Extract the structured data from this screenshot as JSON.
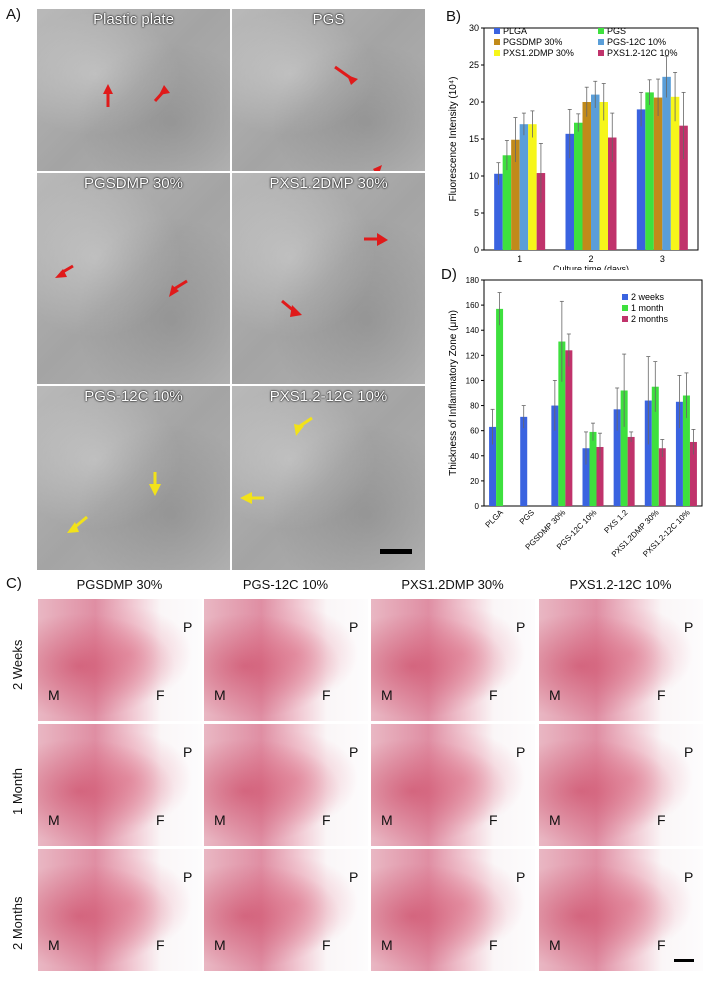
{
  "panels": {
    "a": "A)",
    "b": "B)",
    "c": "C)",
    "d": "D)"
  },
  "panelA": {
    "labels": [
      "Plastic plate",
      "PGS",
      "PGSDMP 30%",
      "PXS1.2DMP 30%",
      "PGS-12C 10%",
      "PXS1.2-12C 10%"
    ]
  },
  "panelC": {
    "columns": [
      "PGSDMP 30%",
      "PGS-12C 10%",
      "PXS1.2DMP 30%",
      "PXS1.2-12C 10%"
    ],
    "rows": [
      "2 Weeks",
      "1 Month",
      "2 Months"
    ],
    "region_labels": {
      "m": "M",
      "f": "F",
      "p": "P"
    }
  },
  "chart_data": [
    {
      "id": "B",
      "type": "bar",
      "xlabel": "Culture time (days)",
      "ylabel": "Fluorescence Intensity (10⁴)",
      "categories": [
        "1",
        "2",
        "3"
      ],
      "ylim": [
        0,
        30
      ],
      "yticks": [
        0,
        5,
        10,
        15,
        20,
        25,
        30
      ],
      "legend": "top",
      "series": [
        {
          "name": "PLGA",
          "color": "#3a63e0",
          "values": [
            10.3,
            15.7,
            19.0
          ],
          "errors": [
            1.5,
            3.3,
            2.3
          ]
        },
        {
          "name": "PGS",
          "color": "#3ee03e",
          "values": [
            12.8,
            17.2,
            21.3
          ],
          "errors": [
            2.0,
            1.2,
            1.7
          ]
        },
        {
          "name": "PGSDMP 30%",
          "color": "#c18a1a",
          "values": [
            14.9,
            20.0,
            20.6
          ],
          "errors": [
            3.0,
            2.0,
            2.5
          ]
        },
        {
          "name": "PGS-12C 10%",
          "color": "#5a9ed8",
          "values": [
            17.0,
            21.0,
            23.4
          ],
          "errors": [
            1.5,
            1.8,
            2.8
          ]
        },
        {
          "name": "PXS1.2DMP 30%",
          "color": "#f6f61a",
          "values": [
            17.0,
            20.0,
            20.7
          ],
          "errors": [
            1.8,
            2.5,
            3.3
          ]
        },
        {
          "name": "PXS1.2-12C 10%",
          "color": "#c0336b",
          "values": [
            10.4,
            15.2,
            16.8
          ],
          "errors": [
            4.0,
            3.3,
            4.5
          ]
        }
      ]
    },
    {
      "id": "D",
      "type": "bar",
      "ylabel": "Thickness of Inflammatory Zone (μm)",
      "categories": [
        "PLGA",
        "PGS",
        "PGSDMP 30%",
        "PGS-12C 10%",
        "PXS 1.2",
        "PXS1.2DMP 30%",
        "PXS1.2-12C 10%"
      ],
      "ylim": [
        0,
        180
      ],
      "yticks": [
        0,
        20,
        40,
        60,
        80,
        100,
        120,
        140,
        160,
        180
      ],
      "legend": "top-right",
      "series": [
        {
          "name": "2 weeks",
          "color": "#3a63e0",
          "values": [
            63,
            71,
            80,
            46,
            77,
            84,
            83
          ],
          "errors": [
            14,
            9,
            20,
            13,
            17,
            35,
            21
          ]
        },
        {
          "name": "1 month",
          "color": "#3ee03e",
          "values": [
            157,
            null,
            131,
            59,
            92,
            95,
            88
          ],
          "errors": [
            13,
            null,
            32,
            7,
            29,
            20,
            18
          ]
        },
        {
          "name": "2 months",
          "color": "#c0336b",
          "values": [
            null,
            null,
            124,
            47,
            55,
            46,
            51
          ],
          "errors": [
            null,
            null,
            13,
            11,
            4,
            7,
            10
          ]
        }
      ]
    }
  ]
}
